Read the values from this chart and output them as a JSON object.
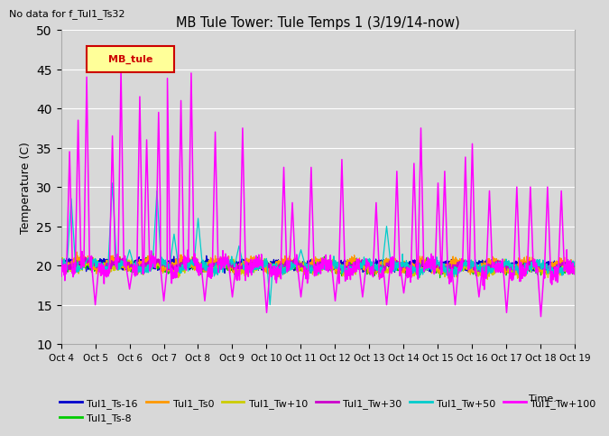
{
  "title": "MB Tule Tower: Tule Temps 1 (3/19/14-now)",
  "subtitle": "No data for f_Tul1_Ts32",
  "xlabel": "Time...",
  "ylabel": "Temperature (C)",
  "ylim": [
    10,
    50
  ],
  "yticks": [
    10,
    15,
    20,
    25,
    30,
    35,
    40,
    45,
    50
  ],
  "xtick_labels": [
    "Oct 4",
    "Oct 5",
    "Oct 6",
    "Oct 7",
    "Oct 8",
    "Oct 9",
    "Oct 10",
    "Oct 11",
    "Oct 12",
    "Oct 13",
    "Oct 14",
    "Oct 15",
    "Oct 16",
    "Oct 17",
    "Oct 18",
    "Oct 19"
  ],
  "background_color": "#d8d8d8",
  "plot_bg_color": "#d8d8d8",
  "legend_label": "MB_tule",
  "legend_bg": "#ffff99",
  "legend_border": "#cc0000",
  "series_colors": {
    "Tul1_Ts-16": "#0000cc",
    "Tul1_Ts-8": "#00cc00",
    "Tul1_Ts0": "#ff9900",
    "Tul1_Tw+10": "#cccc00",
    "Tul1_Tw+30": "#cc00cc",
    "Tul1_Tw+50": "#00cccc",
    "Tul1_Tw+100": "#ff00ff"
  }
}
